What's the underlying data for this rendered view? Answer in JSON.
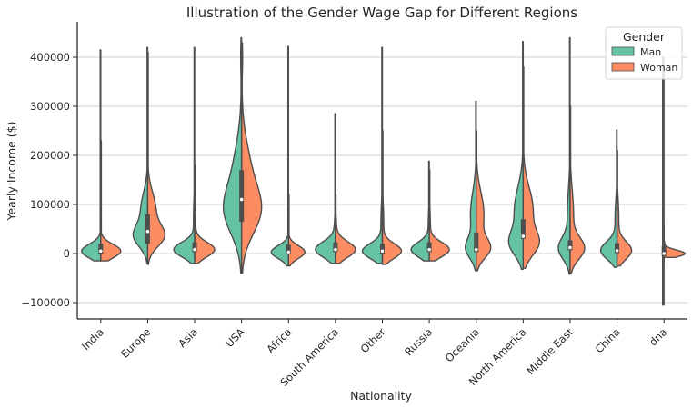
{
  "chart_data": {
    "type": "violin",
    "title": "Illustration of the Gender Wage Gap for Different Regions",
    "xlabel": "Nationality",
    "ylabel": "Yearly Income ($)",
    "ylim": [
      -135000,
      470000
    ],
    "yticks": [
      -100000,
      0,
      100000,
      200000,
      300000,
      400000
    ],
    "ytick_labels": [
      "−100000",
      "0",
      "100000",
      "200000",
      "300000",
      "400000"
    ],
    "grid": "horizontal",
    "legend": {
      "title": "Gender",
      "position": "top-right"
    },
    "categories": [
      "India",
      "Europe",
      "Asia",
      "USA",
      "Africa",
      "South America",
      "Other",
      "Russia",
      "Oceania",
      "North America",
      "Middle East",
      "China",
      "dna"
    ],
    "series": [
      {
        "name": "Man",
        "color": "#66c2a5",
        "min": [
          -15000,
          -20000,
          -20000,
          -40000,
          -25000,
          -20000,
          -20000,
          -15000,
          -35000,
          -32000,
          -42000,
          -28000,
          -105000
        ],
        "max": [
          415000,
          420000,
          420000,
          440000,
          422000,
          285000,
          420000,
          188000,
          310000,
          432000,
          440000,
          252000,
          400000
        ],
        "median": [
          5000,
          45000,
          8000,
          110000,
          3000,
          8000,
          5000,
          8000,
          8000,
          35000,
          12000,
          6000,
          0
        ]
      },
      {
        "name": "Woman",
        "color": "#fc8d62",
        "min": [
          -15000,
          -22000,
          -20000,
          -40000,
          -25000,
          -20000,
          -22000,
          -15000,
          -35000,
          -30000,
          -40000,
          -25000,
          -8000
        ],
        "max": [
          230000,
          410000,
          180000,
          430000,
          120000,
          120000,
          250000,
          170000,
          250000,
          380000,
          300000,
          210000,
          25000
        ],
        "median": [
          5000,
          45000,
          8000,
          110000,
          3000,
          8000,
          5000,
          8000,
          8000,
          35000,
          12000,
          6000,
          0
        ]
      }
    ]
  }
}
